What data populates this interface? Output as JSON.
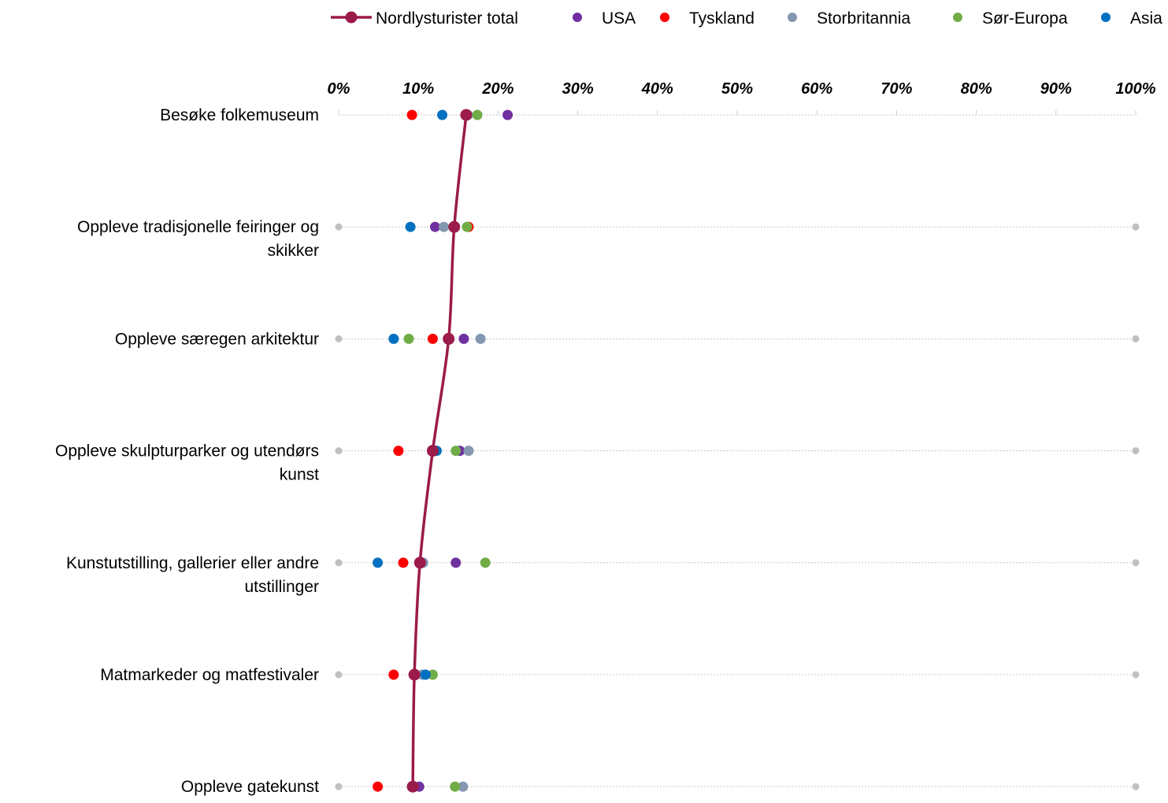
{
  "chart_data": {
    "type": "scatter",
    "title": "",
    "xlabel": "",
    "ylabel": "",
    "xlim": [
      0,
      100
    ],
    "x_tick_labels": [
      "0%",
      "10%",
      "20%",
      "30%",
      "40%",
      "50%",
      "60%",
      "70%",
      "80%",
      "90%",
      "100%"
    ],
    "x_axis_position": "top",
    "grid": "horizontal-dotted",
    "legend_position": "top",
    "categories": [
      [
        "Besøke folkemuseum"
      ],
      [
        "Oppleve tradisjonelle feiringer og",
        "skikker"
      ],
      [
        "Oppleve særegen arkitektur"
      ],
      [
        "Oppleve skulpturparker og utendørs",
        "kunst"
      ],
      [
        "Kunstutstilling, gallerier eller andre",
        "utstillinger"
      ],
      [
        "Matmarkeder og matfestivaler"
      ],
      [
        "Oppleve gatekunst"
      ]
    ],
    "series": [
      {
        "name": "Nordlysturister total",
        "color": "#9B1B4A",
        "style": "line+marker",
        "values": [
          16,
          14.5,
          13.8,
          11.8,
          10.2,
          9.5,
          9.3
        ]
      },
      {
        "name": "USA",
        "color": "#7030A0",
        "style": "marker",
        "values": [
          21.2,
          12.1,
          15.7,
          15.2,
          14.7,
          9.6,
          10.1
        ]
      },
      {
        "name": "Tyskland",
        "color": "#FF0000",
        "style": "marker",
        "values": [
          9.2,
          16.3,
          11.8,
          7.5,
          8.1,
          6.9,
          4.9
        ]
      },
      {
        "name": "Storbritannia",
        "color": "#8497B0",
        "style": "marker",
        "values": [
          16.2,
          13.2,
          17.8,
          16.3,
          10.6,
          10.5,
          15.6
        ]
      },
      {
        "name": "Sør-Europa",
        "color": "#70AD47",
        "style": "marker",
        "values": [
          17.4,
          16.1,
          8.8,
          14.7,
          18.4,
          11.8,
          14.6
        ]
      },
      {
        "name": "Asia",
        "color": "#0070C0",
        "style": "marker",
        "values": [
          13,
          9,
          6.9,
          12.3,
          4.9,
          10.9,
          9.2
        ]
      }
    ],
    "endpoint_markers_color": "#C0C0C0"
  }
}
